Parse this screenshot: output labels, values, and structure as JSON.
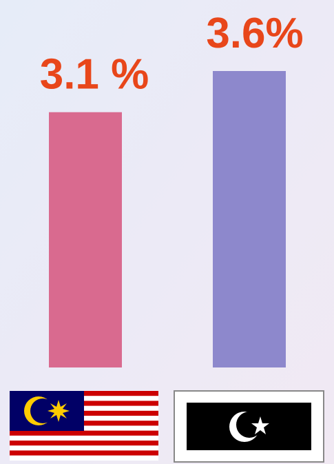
{
  "chart_data": {
    "type": "bar",
    "categories": [
      null,
      null
    ],
    "values": [
      3.1,
      3.6
    ],
    "value_labels": [
      "3.1 %",
      "3.6%"
    ],
    "colors": [
      "#d96a8f",
      "#8d88cc"
    ],
    "label_color": "#e8461a"
  }
}
